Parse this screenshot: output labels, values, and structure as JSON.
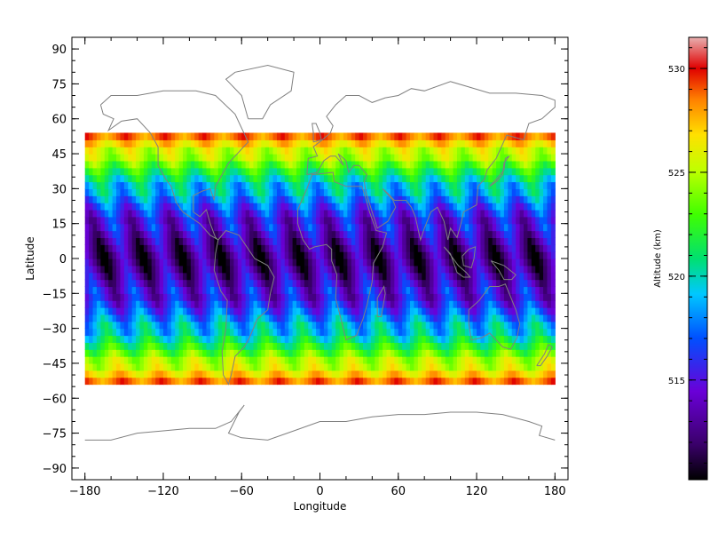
{
  "chart_data": [
    {
      "type": "heatmap",
      "title": "",
      "xlabel": "Longitude",
      "ylabel": "Latitude",
      "xlim": [
        -190,
        190
      ],
      "ylim": [
        -95,
        95
      ],
      "x_ticks": [
        "-180",
        "-120",
        "-60",
        "0",
        "60",
        "120",
        "180"
      ],
      "x_tick_values": [
        -180,
        -120,
        -60,
        0,
        60,
        120,
        180
      ],
      "y_ticks": [
        "90",
        "75",
        "60",
        "45",
        "30",
        "15",
        "0",
        "-15",
        "-30",
        "-45",
        "-60",
        "-75",
        "-90"
      ],
      "y_tick_values": [
        90,
        75,
        60,
        45,
        30,
        15,
        0,
        -15,
        -30,
        -45,
        -60,
        -75,
        -90
      ],
      "data_extent": {
        "lon": [
          -180,
          180
        ],
        "lat": [
          -54,
          54
        ]
      },
      "pattern": "satellite orbit altitude coverage: sawtooth/triangular bands repeating in longitude, altitude highest near ±54° latitude and lowest near equator",
      "grid": false,
      "basemap": "world coastlines (gray outline)"
    },
    {
      "type": "heatmap",
      "title": "",
      "ylabel": "Altitude (km)",
      "ylim": [
        510.2,
        531.5
      ],
      "y_ticks": [
        "515",
        "520",
        "525",
        "530"
      ],
      "y_tick_values": [
        515,
        520,
        525,
        530
      ],
      "colormap": "rainbow (black-purple-blue-cyan-green-yellow-orange-red-pink)"
    }
  ]
}
